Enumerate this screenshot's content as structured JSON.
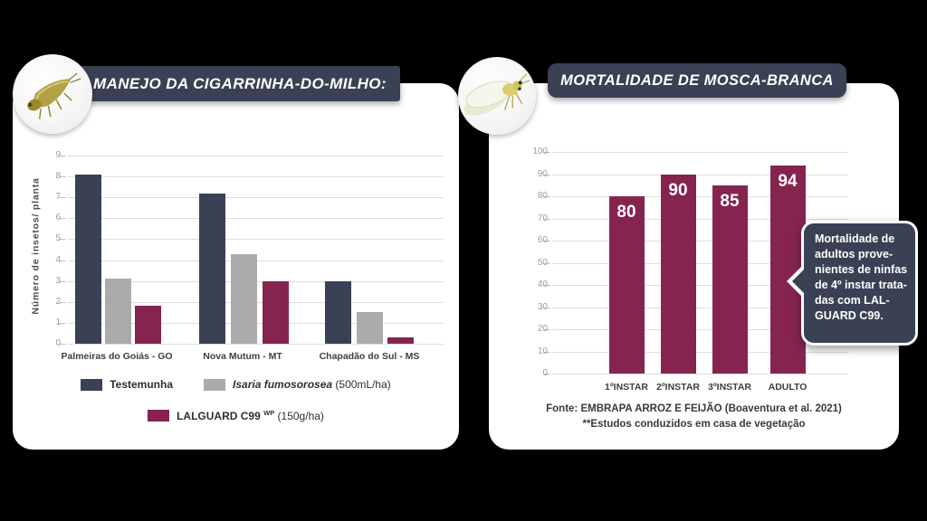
{
  "colors": {
    "background": "#000000",
    "card": "#ffffff",
    "slate": "#3a4154",
    "gray_bar": "#ababab",
    "maroon": "#85244f",
    "gridline": "#dedede",
    "tick_text": "#9c9c9c"
  },
  "left_panel": {
    "title": "MANEJO DA CIGARRINHA-DO-MILHO:",
    "insect_icon": "corn-leafhopper-icon",
    "legend_rows": [
      [
        {
          "swatch_color": "#3a4154",
          "parts": [
            {
              "text": "Testemunha",
              "style": "sb"
            }
          ]
        },
        {
          "swatch_color": "#ababab",
          "parts": [
            {
              "text": "Isaria fumosorosea",
              "style": "bi"
            },
            {
              "text": " (500mL/ha)",
              "style": "n"
            }
          ]
        }
      ],
      [
        {
          "swatch_color": "#85244f",
          "parts": [
            {
              "text": "LALGUARD C99 ",
              "style": "b"
            },
            {
              "text": "WP",
              "style": "sup"
            },
            {
              "text": " (150g/ha)",
              "style": "n"
            }
          ]
        }
      ]
    ]
  },
  "right_panel": {
    "title": "MORTALIDADE DE MOSCA-BRANCA",
    "insect_icon": "whitefly-icon",
    "callout": {
      "text": "Mortalidade de adultos provenientes de ninfas de 4º instar tratadas com LALGUARD C99.",
      "display_text": "Mortalidade de\nadultos prove-\nnientes de ninfas\nde 4º instar trata-\ndas com LAL-\nGUARD C99."
    },
    "source_line1": "Fonte: EMBRAPA ARROZ E FEIJÃO (Boaventura et al. 2021)",
    "source_line2": "**Estudos conduzidos em casa de vegetação"
  },
  "chart_data": [
    {
      "type": "bar",
      "title": "MANEJO DA CIGARRINHA-DO-MILHO:",
      "xlabel": "",
      "ylabel": "Número de insetos/ planta",
      "categories": [
        "Palmeiras do Goiás - GO",
        "Nova Mutum - MT",
        "Chapadão do Sul - MS"
      ],
      "series": [
        {
          "name": "Testemunha",
          "color": "#3a4154",
          "values": [
            8.1,
            7.2,
            3.0
          ]
        },
        {
          "name": "Isaria fumosorosea (500mL/ha)",
          "color": "#ababab",
          "values": [
            3.1,
            4.3,
            1.5
          ]
        },
        {
          "name": "LALGUARD C99 WP (150g/ha)",
          "color": "#85244f",
          "values": [
            1.8,
            3.0,
            0.3
          ]
        }
      ],
      "ylim": [
        0,
        9
      ],
      "ytick_step": 1,
      "grid": true,
      "legend_position": "bottom"
    },
    {
      "type": "bar",
      "title": "MORTALIDADE DE MOSCA-BRANCA",
      "xlabel": "",
      "ylabel": "",
      "categories": [
        "1ºINSTAR",
        "2ºINSTAR",
        "3ºINSTAR",
        "ADULTO"
      ],
      "values": [
        80,
        90,
        85,
        94
      ],
      "data_labels": [
        "80",
        "90",
        "85",
        "94"
      ],
      "bar_color": "#85244f",
      "ylim": [
        0,
        100
      ],
      "ytick_step": 10,
      "grid": true,
      "legend_position": "none"
    }
  ]
}
